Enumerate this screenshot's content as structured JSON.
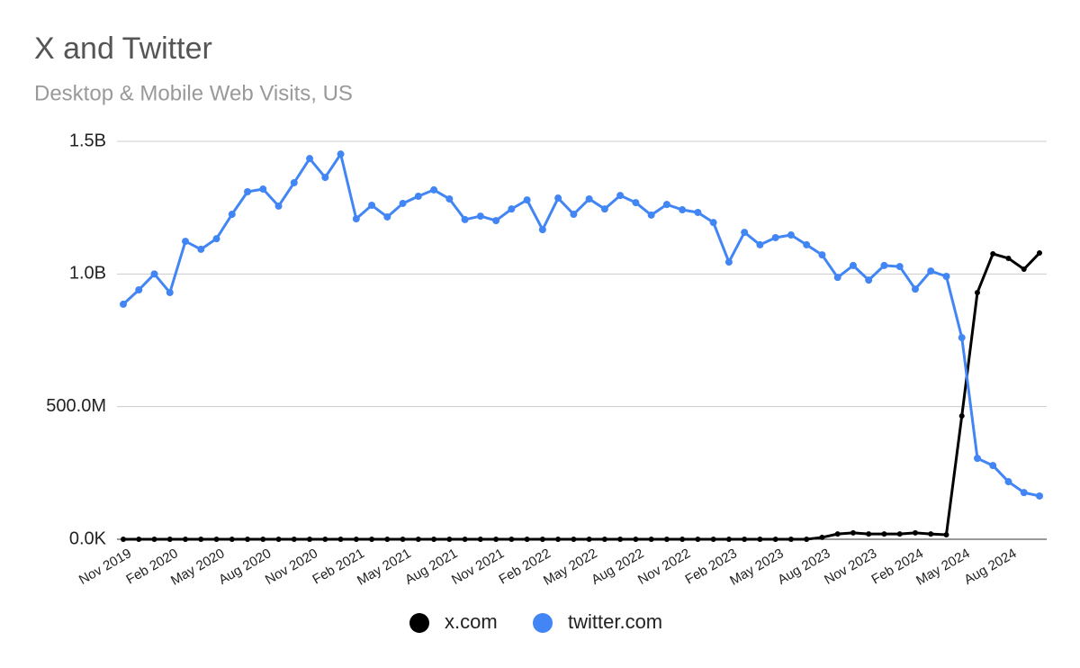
{
  "chart_data": {
    "type": "line",
    "title": "X and Twitter",
    "subtitle": "Desktop & Mobile Web Visits, US",
    "categories": [
      "Nov 2019",
      null,
      null,
      "Feb 2020",
      null,
      null,
      "May 2020",
      null,
      null,
      "Aug 2020",
      null,
      null,
      "Nov 2020",
      null,
      null,
      "Feb 2021",
      null,
      null,
      "May 2021",
      null,
      null,
      "Aug 2021",
      null,
      null,
      "Nov 2021",
      null,
      null,
      "Feb 2022",
      null,
      null,
      "May 2022",
      null,
      null,
      "Aug 2022",
      null,
      null,
      "Nov 2022",
      null,
      null,
      "Feb 2023",
      null,
      null,
      "May 2023",
      null,
      null,
      "Aug 2023",
      null,
      null,
      "Nov 2023",
      null,
      null,
      "Feb 2024",
      null,
      null,
      "May 2024",
      null,
      null,
      "Aug 2024",
      null,
      null
    ],
    "series": [
      {
        "name": "x.com",
        "color": "#000000",
        "values": [
          0,
          0,
          0,
          0,
          0,
          0,
          0,
          0,
          0,
          0,
          0,
          0,
          0,
          0,
          0,
          0,
          0,
          0,
          0,
          0,
          0,
          0,
          0,
          0,
          0,
          0,
          0,
          0,
          0,
          0,
          0,
          0,
          0,
          0,
          0,
          0,
          0,
          0,
          0,
          0,
          0,
          0,
          0,
          0,
          0,
          7000000,
          20000000,
          24000000,
          20000000,
          20000000,
          20000000,
          24000000,
          20000000,
          17000000,
          465000000,
          930000000,
          1076000000,
          1059000000,
          1018000000,
          1079000000
        ]
      },
      {
        "name": "twitter.com",
        "color": "#4285f4",
        "values": [
          886000000,
          940000000,
          1000000000,
          930000000,
          1123000000,
          1093000000,
          1133000000,
          1225000000,
          1310000000,
          1320000000,
          1256000000,
          1344000000,
          1435000000,
          1364000000,
          1452000000,
          1208000000,
          1259000000,
          1215000000,
          1266000000,
          1293000000,
          1317000000,
          1283000000,
          1205000000,
          1218000000,
          1201000000,
          1245000000,
          1279000000,
          1167000000,
          1286000000,
          1225000000,
          1283000000,
          1245000000,
          1296000000,
          1269000000,
          1222000000,
          1262000000,
          1242000000,
          1232000000,
          1194000000,
          1045000000,
          1157000000,
          1110000000,
          1137000000,
          1147000000,
          1110000000,
          1072000000,
          987000000,
          1032000000,
          977000000,
          1032000000,
          1028000000,
          943000000,
          1011000000,
          991000000,
          760000000,
          305000000,
          278000000,
          217000000,
          176000000,
          163000000
        ]
      }
    ],
    "ylim": [
      0,
      1500000000
    ],
    "yticks": [
      {
        "value": 0,
        "label": "0.0K"
      },
      {
        "value": 500000000,
        "label": "500.0M"
      },
      {
        "value": 1000000000,
        "label": "1.0B"
      },
      {
        "value": 1500000000,
        "label": "1.5B"
      }
    ],
    "grid": true,
    "legend": "bottom"
  }
}
